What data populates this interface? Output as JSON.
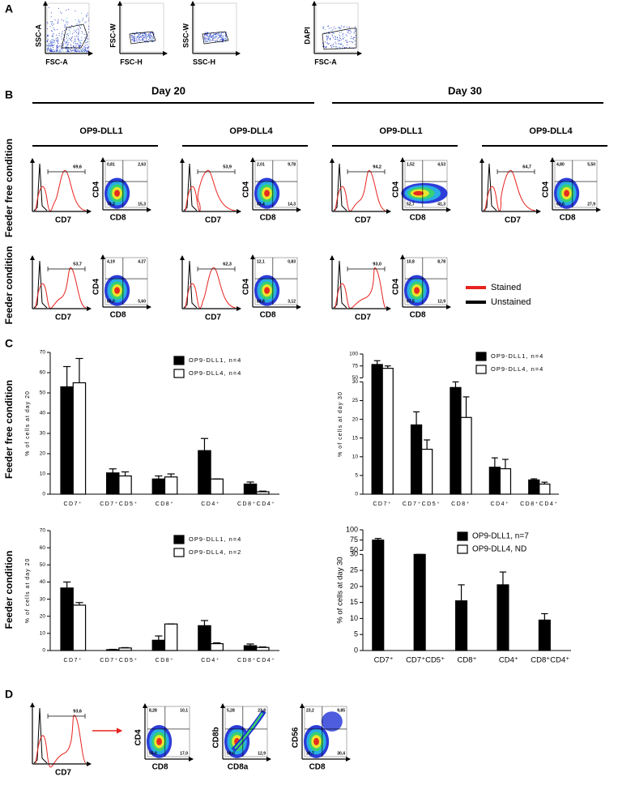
{
  "panel_labels": [
    "A",
    "B",
    "C",
    "D"
  ],
  "gating": [
    {
      "y_label": "SSC-A",
      "x_label": "FSC-A"
    },
    {
      "y_label": "FSC-W",
      "x_label": "FSC-H"
    },
    {
      "y_label": "SSC-W",
      "x_label": "SSC-H"
    },
    {
      "y_label": "DAPI",
      "x_label": "FSC-A"
    }
  ],
  "flow": {
    "days": [
      "Day 20",
      "Day 30"
    ],
    "lines": [
      "OP9-DLL1",
      "OP9-DLL4",
      "OP9-DLL1",
      "OP9-DLL4"
    ],
    "conditions": [
      "Feeder free condition",
      "Feeder condition"
    ],
    "hist_label": "CD7",
    "quad_y": "CD4",
    "quad_x": "CD8",
    "rows": [
      [
        {
          "gate": "69,6",
          "quadrants": [
            "0,81",
            "2,63",
            "78,3",
            "15,3"
          ]
        },
        {
          "gate": "53,9",
          "quadrants": [
            "2,01",
            "9,78",
            "82,4",
            "14,3"
          ]
        },
        {
          "gate": "94,2",
          "quadrants": [
            "1,52",
            "4,53",
            "52,7",
            "41,3"
          ]
        },
        {
          "gate": "64,7",
          "quadrants": [
            "4,80",
            "5,50",
            "62,0",
            "27,9"
          ]
        }
      ],
      [
        {
          "gate": "53,7",
          "quadrants": [
            "4,19",
            "4.27",
            "85,0",
            "5,60"
          ]
        },
        {
          "gate": "62,3",
          "quadrants": [
            "12,1",
            "0,83",
            "84,8",
            "3,12"
          ]
        },
        {
          "gate": "93,0",
          "quadrants": [
            "10,8",
            "8,78",
            "67,5",
            "12,9"
          ]
        }
      ]
    ],
    "legend": [
      {
        "name": "Stained",
        "color": "#e8231f"
      },
      {
        "name": "Unstained",
        "color": "#000000"
      }
    ]
  },
  "chart_data": [
    {
      "type": "bar",
      "y_label": "% of cells at day 20",
      "categories": [
        "CD7⁺",
        "CD7⁺CD5⁺",
        "CD8⁺",
        "CD4⁺",
        "CD8⁺CD4⁺"
      ],
      "ylim": [
        0,
        70
      ],
      "yticks": [
        0,
        10,
        20,
        30,
        40,
        50,
        60,
        70
      ],
      "series": [
        {
          "name": "OP9-DLL1, n=4",
          "color": "#000000",
          "values": [
            53,
            10.5,
            7.5,
            21.5,
            5
          ],
          "errors": [
            10,
            2,
            1.5,
            6,
            1
          ]
        },
        {
          "name": "OP9-DLL4, n=4",
          "color": "#ffffff",
          "values": [
            55,
            9,
            8.5,
            7.5,
            1.2
          ],
          "errors": [
            12,
            2,
            1.5,
            0,
            0.3
          ]
        }
      ]
    },
    {
      "type": "bar",
      "y_label": "% of cells at day 30",
      "categories": [
        "CD7⁺",
        "CD7⁺CD5⁺",
        "CD8⁺",
        "CD4⁺",
        "CD8⁺CD4⁺"
      ],
      "ylim": [
        0,
        100
      ],
      "ybreak": [
        30,
        50
      ],
      "yticks": [
        0,
        5,
        10,
        15,
        20,
        25,
        30,
        50,
        75,
        100
      ],
      "series": [
        {
          "name": "OP9-DLL1, n=4",
          "color": "#000000",
          "values": [
            78,
            18.5,
            28.5,
            7.2,
            3.8
          ],
          "errors": [
            8,
            3.5,
            4.5,
            2.5,
            0.3
          ]
        },
        {
          "name": "OP9-DLL4, n=4",
          "color": "#ffffff",
          "values": [
            70,
            12,
            20.5,
            6.8,
            2.7
          ],
          "errors": [
            5,
            2.5,
            5.5,
            2.5,
            0.5
          ]
        }
      ]
    },
    {
      "type": "bar",
      "y_label": "% of cells at day 20",
      "categories": [
        "CD7⁺",
        "CD7⁺CD5⁺",
        "CD8⁺",
        "CD4⁺",
        "CD8⁺CD4⁺"
      ],
      "ylim": [
        0,
        70
      ],
      "yticks": [
        0,
        10,
        20,
        30,
        40,
        50,
        60,
        70
      ],
      "series": [
        {
          "name": "OP9-DLL1, n=4",
          "color": "#000000",
          "values": [
            36.5,
            0.5,
            6,
            14.5,
            2.8
          ],
          "errors": [
            3.5,
            0.2,
            2.5,
            3,
            1
          ]
        },
        {
          "name": "OP9-DLL4, n=2",
          "color": "#ffffff",
          "values": [
            26.5,
            1.5,
            15.5,
            4,
            1.8
          ],
          "errors": [
            1.5,
            0.2,
            0,
            0.5,
            0.3
          ]
        }
      ]
    },
    {
      "type": "bar",
      "y_label": "% of cells at day 30",
      "categories": [
        "CD7⁺",
        "CD7⁺CD5⁺",
        "CD8⁺",
        "CD4⁺",
        "CD8⁺CD4⁺"
      ],
      "ylim": [
        0,
        100
      ],
      "ybreak": [
        30,
        50
      ],
      "yticks": [
        0,
        5,
        10,
        15,
        20,
        25,
        30,
        50,
        75,
        100
      ],
      "series": [
        {
          "name": "OP9-DLL1, n=7",
          "color": "#000000",
          "values": [
            75,
            38,
            15.5,
            20.5,
            9.5
          ],
          "errors": [
            4,
            5,
            5,
            4,
            2
          ]
        },
        {
          "name": "OP9-DLL4, ND",
          "color": "#ffffff",
          "values": [
            null,
            null,
            null,
            null,
            null
          ],
          "errors": [
            null,
            null,
            null,
            null,
            null
          ]
        }
      ]
    }
  ],
  "panel_d": {
    "histogram": {
      "gate": "93,6",
      "x_label": "CD7"
    },
    "plots": [
      {
        "y_label": "CD4",
        "x_label": "CD8",
        "quadrants": [
          "8,28",
          "10,1",
          "55,0",
          "17,0"
        ]
      },
      {
        "y_label": "CD8b",
        "x_label": "CD8a",
        "quadrants": [
          "5,28",
          "23,8",
          "58,0",
          "12,9"
        ]
      },
      {
        "y_label": "CD56",
        "x_label": "CD8",
        "quadrants": [
          "23,2",
          "9,85",
          "36,7",
          "30,4"
        ]
      }
    ]
  }
}
